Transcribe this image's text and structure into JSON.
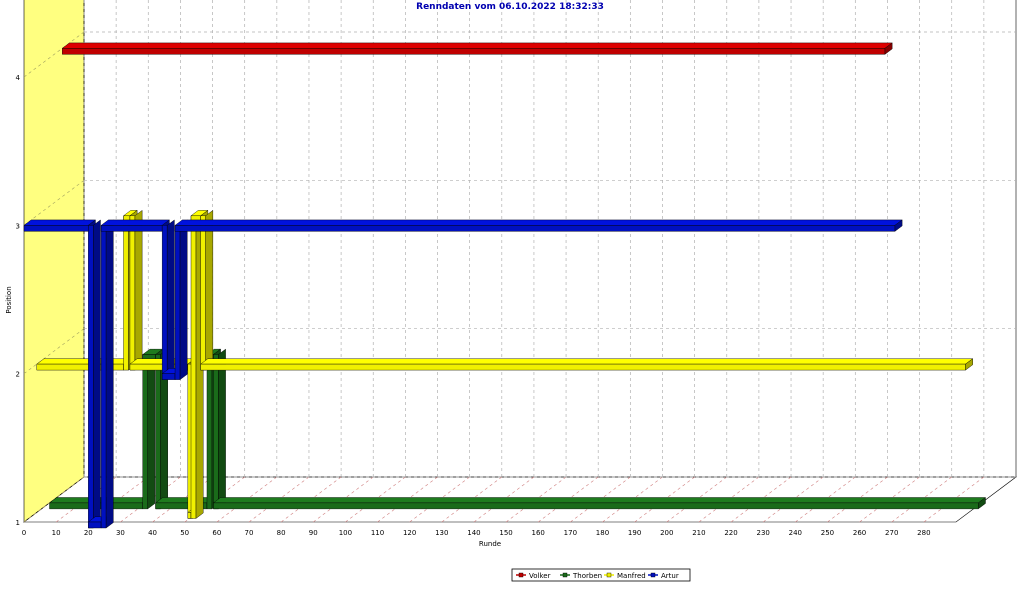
{
  "chart_data": {
    "type": "line",
    "title": "Renndaten vom 06.10.2022 18:32:33",
    "xlabel": "Runde",
    "ylabel": "Position",
    "xlim": [
      0,
      290
    ],
    "ylim": [
      1,
      4
    ],
    "x_ticks": [
      "0",
      "10",
      "20",
      "30",
      "40",
      "50",
      "60",
      "70",
      "80",
      "90",
      "100",
      "110",
      "120",
      "130",
      "140",
      "150",
      "160",
      "170",
      "180",
      "190",
      "200",
      "210",
      "220",
      "230",
      "240",
      "250",
      "260",
      "270",
      "280"
    ],
    "y_ticks": [
      "1",
      "2",
      "3",
      "4"
    ],
    "grid": true,
    "legend_position": "bottom-center",
    "series": [
      {
        "name": "Volker",
        "color": "#c00000",
        "points": [
          [
            0,
            4
          ],
          [
            256,
            4
          ]
        ]
      },
      {
        "name": "Thorben",
        "color": "#1a6b1a",
        "points": [
          [
            0,
            1
          ],
          [
            29,
            1
          ],
          [
            29,
            2
          ],
          [
            33,
            2
          ],
          [
            33,
            1
          ],
          [
            49,
            1
          ],
          [
            49,
            2
          ],
          [
            51,
            2
          ],
          [
            51,
            1
          ],
          [
            289,
            1
          ]
        ]
      },
      {
        "name": "Manfred",
        "color": "#f0f000",
        "points": [
          [
            0,
            2
          ],
          [
            27,
            2
          ],
          [
            27,
            3
          ],
          [
            29,
            3
          ],
          [
            29,
            2
          ],
          [
            47,
            2
          ],
          [
            47,
            1
          ],
          [
            48,
            1
          ],
          [
            48,
            3
          ],
          [
            51,
            3
          ],
          [
            51,
            2
          ],
          [
            289,
            2
          ]
        ]
      },
      {
        "name": "Artur",
        "color": "#0010c0",
        "points": [
          [
            0,
            3
          ],
          [
            20,
            3
          ],
          [
            20,
            1
          ],
          [
            24,
            1
          ],
          [
            24,
            3
          ],
          [
            43,
            3
          ],
          [
            43,
            2
          ],
          [
            47,
            2
          ],
          [
            47,
            3
          ],
          [
            271,
            3
          ]
        ]
      }
    ]
  }
}
